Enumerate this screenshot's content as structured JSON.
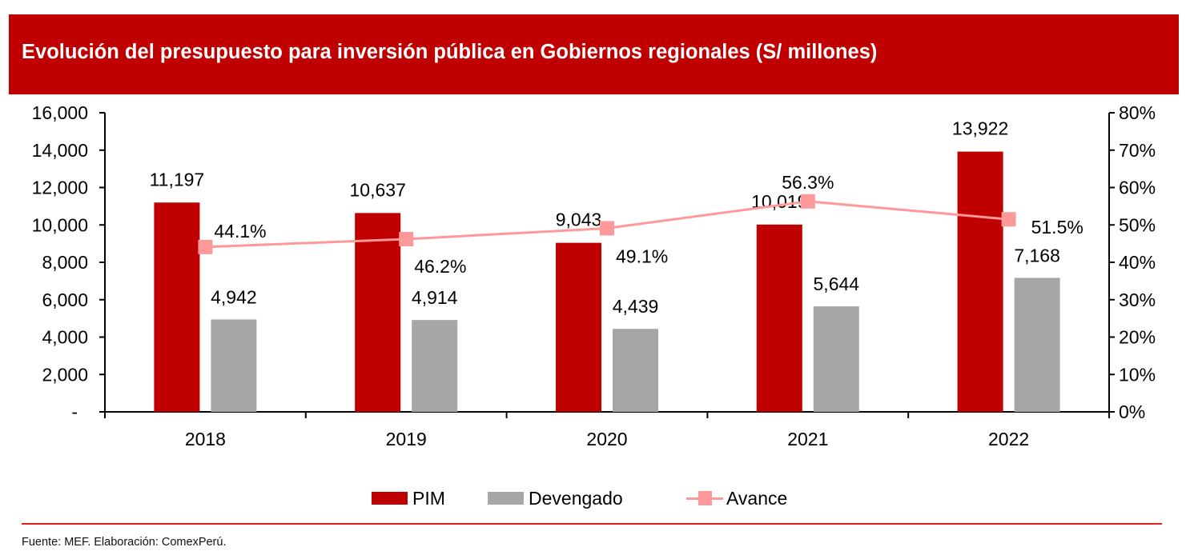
{
  "header": {
    "title": "Evolución del presupuesto para inversión pública en Gobiernos regionales (S/ millones)"
  },
  "footer": {
    "source": "Fuente: MEF. Elaboración: ComexPerú."
  },
  "colors": {
    "title_bg": "#c00000",
    "pim": "#c00000",
    "devengado": "#a6a6a6",
    "avance": "#ff9999",
    "rule": "#e02020"
  },
  "chart_data": {
    "type": "bar",
    "title": "Evolución del presupuesto para inversión pública en Gobiernos regionales (S/ millones)",
    "categories": [
      "2018",
      "2019",
      "2020",
      "2021",
      "2022"
    ],
    "series": [
      {
        "name": "PIM",
        "type": "bar",
        "axis": "left",
        "values": [
          11197,
          10637,
          9043,
          10019,
          13922
        ],
        "labels": [
          "11,197",
          "10,637",
          "9,043",
          "10,019",
          "13,922"
        ]
      },
      {
        "name": "Devengado",
        "type": "bar",
        "axis": "left",
        "values": [
          4942,
          4914,
          4439,
          5644,
          7168
        ],
        "labels": [
          "4,942",
          "4,914",
          "4,439",
          "5,644",
          "7,168"
        ]
      },
      {
        "name": "Avance",
        "type": "line",
        "axis": "right",
        "values": [
          44.1,
          46.2,
          49.1,
          56.3,
          51.5
        ],
        "labels": [
          "44.1%",
          "46.2%",
          "49.1%",
          "56.3%",
          "51.5%"
        ]
      }
    ],
    "y_left": {
      "range": [
        0,
        16000
      ],
      "ticks": [
        0,
        2000,
        4000,
        6000,
        8000,
        10000,
        12000,
        14000,
        16000
      ],
      "tick_labels": [
        "-",
        "2,000",
        "4,000",
        "6,000",
        "8,000",
        "10,000",
        "12,000",
        "14,000",
        "16,000"
      ]
    },
    "y_right": {
      "range": [
        0,
        80
      ],
      "ticks": [
        0,
        10,
        20,
        30,
        40,
        50,
        60,
        70,
        80
      ],
      "tick_labels": [
        "0%",
        "10%",
        "20%",
        "30%",
        "40%",
        "50%",
        "60%",
        "70%",
        "80%"
      ]
    },
    "xlabel": "",
    "ylabel": "",
    "grid": false,
    "legend": {
      "position": "bottom",
      "entries": [
        "PIM",
        "Devengado",
        "Avance"
      ]
    }
  }
}
